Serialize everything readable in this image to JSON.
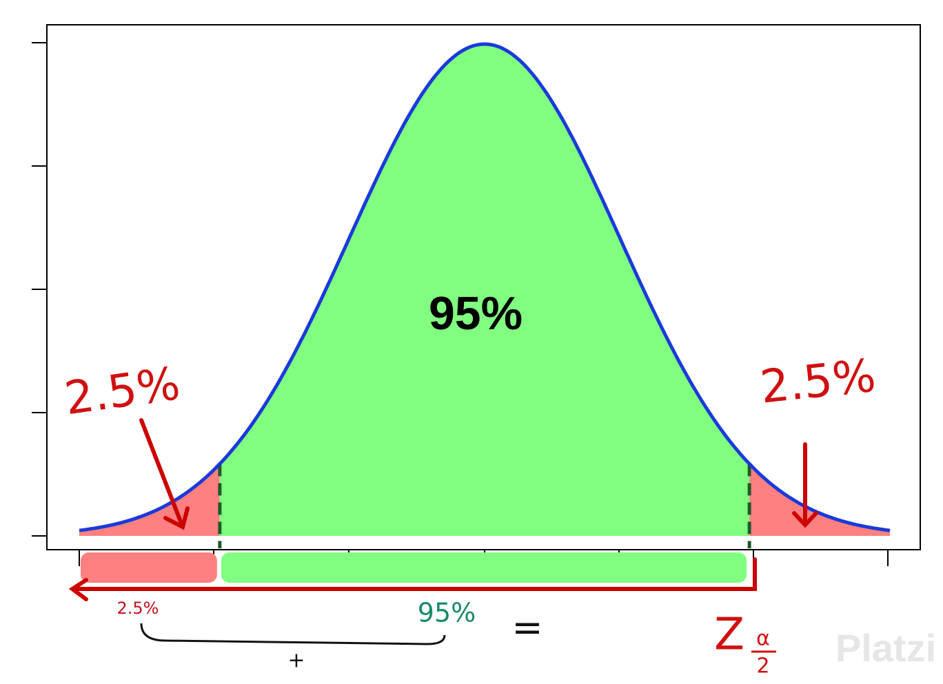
{
  "chart_data": {
    "type": "normal-area",
    "values": [
      2.5,
      95,
      2.5
    ],
    "value_labels": [
      "2.5%",
      "95%",
      "2.5%"
    ],
    "colors": [
      "#ff8080",
      "#80ff80",
      "#ff8080"
    ],
    "curve_color": "#1a3adb",
    "annotations": {
      "left_sum": "2.5%",
      "center_sum": "95%",
      "equals": "=",
      "plus": "+",
      "z": "Z",
      "alpha": "α",
      "two": "2"
    },
    "watermark": "Platzi"
  }
}
